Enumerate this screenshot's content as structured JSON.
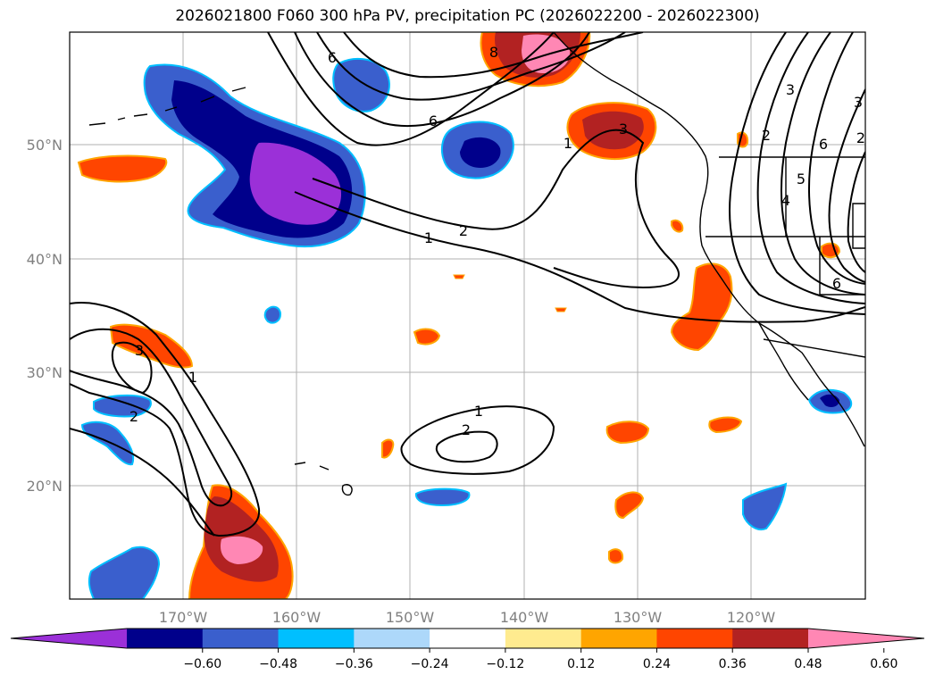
{
  "title": "2026021800 F060 300 hPa PV, precipitation PC (2026022200 - 2026022300)",
  "lat_labels": [
    "50°N",
    "40°N",
    "30°N",
    "20°N"
  ],
  "lon_labels": [
    "170°W",
    "160°W",
    "150°W",
    "140°W",
    "130°W",
    "120°W"
  ],
  "colorbar": {
    "colors": [
      "#9b30d8",
      "#00008b",
      "#3a5fcd",
      "#00bfff",
      "#add8fa",
      "#ffffff",
      "#ffeb8f",
      "#ffa500",
      "#ff4500",
      "#b22222",
      "#ff87b4"
    ],
    "tick_labels": [
      "−0.60",
      "−0.48",
      "−0.36",
      "−0.24",
      "−0.12",
      "0.12",
      "0.24",
      "0.36",
      "0.48",
      "0.60"
    ]
  },
  "contour_labels": [
    "6",
    "3",
    "8",
    "6",
    "1",
    "2",
    "3",
    "1",
    "2",
    "1",
    "2",
    "1",
    "2",
    "3",
    "4",
    "5",
    "6",
    "6",
    "2",
    "3"
  ]
}
